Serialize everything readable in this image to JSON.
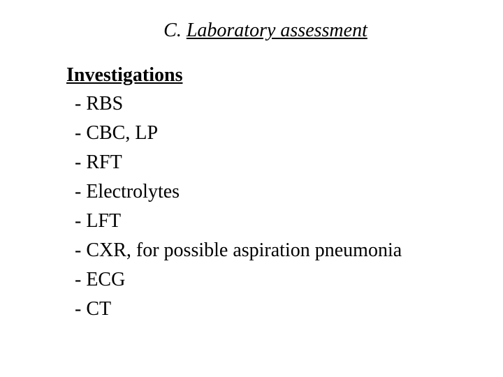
{
  "title": {
    "prefix": "C. ",
    "main": "Laboratory assessment"
  },
  "subheading": "Investigations",
  "items": [
    "- RBS",
    "- CBC, LP",
    "- RFT",
    "- Electrolytes",
    "- LFT",
    "- CXR, for possible aspiration pneumonia",
    "- ECG",
    "- CT"
  ],
  "colors": {
    "background": "#ffffff",
    "text": "#000000"
  },
  "typography": {
    "font_family": "Times New Roman",
    "title_fontsize": 28,
    "body_fontsize": 28
  }
}
